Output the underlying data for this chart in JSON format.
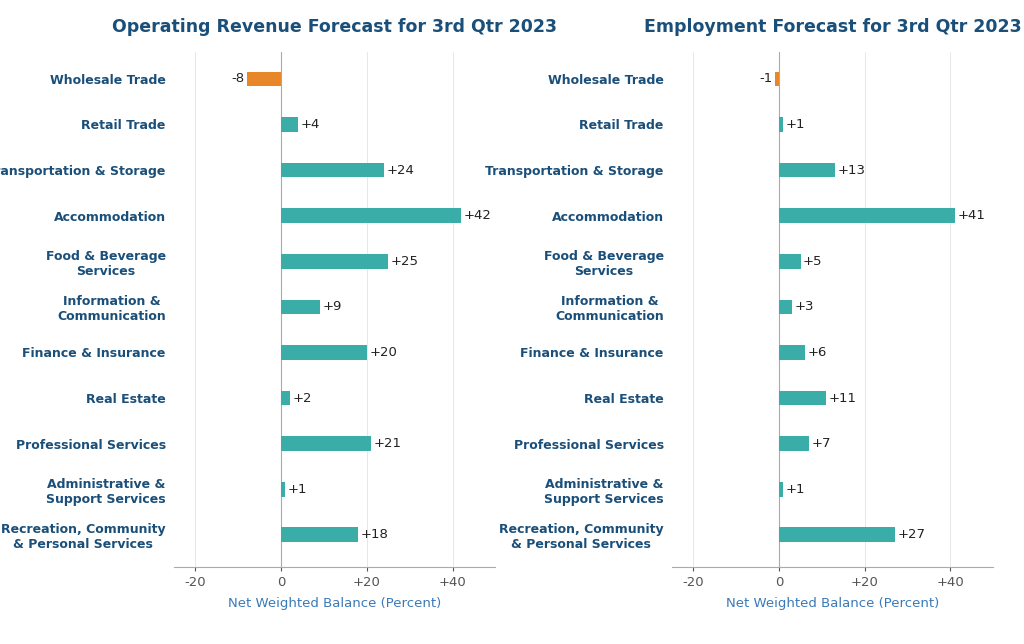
{
  "left_title": "Operating Revenue Forecast for 3rd Qtr 2023",
  "right_title": "Employment Forecast for 3rd Qtr 2023",
  "xlabel": "Net Weighted Balance (Percent)",
  "categories": [
    "Wholesale Trade",
    "Retail Trade",
    "Transportation & Storage",
    "Accommodation",
    "Food & Beverage\nServices",
    "Information &\nCommunication",
    "Finance & Insurance",
    "Real Estate",
    "Professional Services",
    "Administrative &\nSupport Services",
    "Recreation, Community\n& Personal Services"
  ],
  "left_values": [
    -8,
    4,
    24,
    42,
    25,
    9,
    20,
    2,
    21,
    1,
    18
  ],
  "right_values": [
    -1,
    1,
    13,
    41,
    5,
    3,
    6,
    11,
    7,
    1,
    27
  ],
  "left_labels": [
    "-8",
    "+4",
    "+24",
    "+42",
    "+25",
    "+9",
    "+20",
    "+2",
    "+21",
    "+1",
    "+18"
  ],
  "right_labels": [
    "-1",
    "+1",
    "+13",
    "+41",
    "+5",
    "+3",
    "+6",
    "+11",
    "+7",
    "+1",
    "+27"
  ],
  "teal_color": "#3aada8",
  "orange_color": "#e8872a",
  "title_color": "#1a4f7a",
  "label_color": "#1a4f7a",
  "axis_label_color": "#3a7ab8",
  "value_label_color": "#222222",
  "tick_color": "#555555",
  "background_color": "#ffffff",
  "xlim": [
    -25,
    50
  ],
  "xticks": [
    -20,
    0,
    20,
    40
  ],
  "xticklabels": [
    "-20",
    "0",
    "+20",
    "+40"
  ],
  "title_fontsize": 12.5,
  "value_label_fontsize": 9.5,
  "category_fontsize": 9,
  "xlabel_fontsize": 9.5,
  "bar_height": 0.45,
  "bar_spacing": 1.4
}
